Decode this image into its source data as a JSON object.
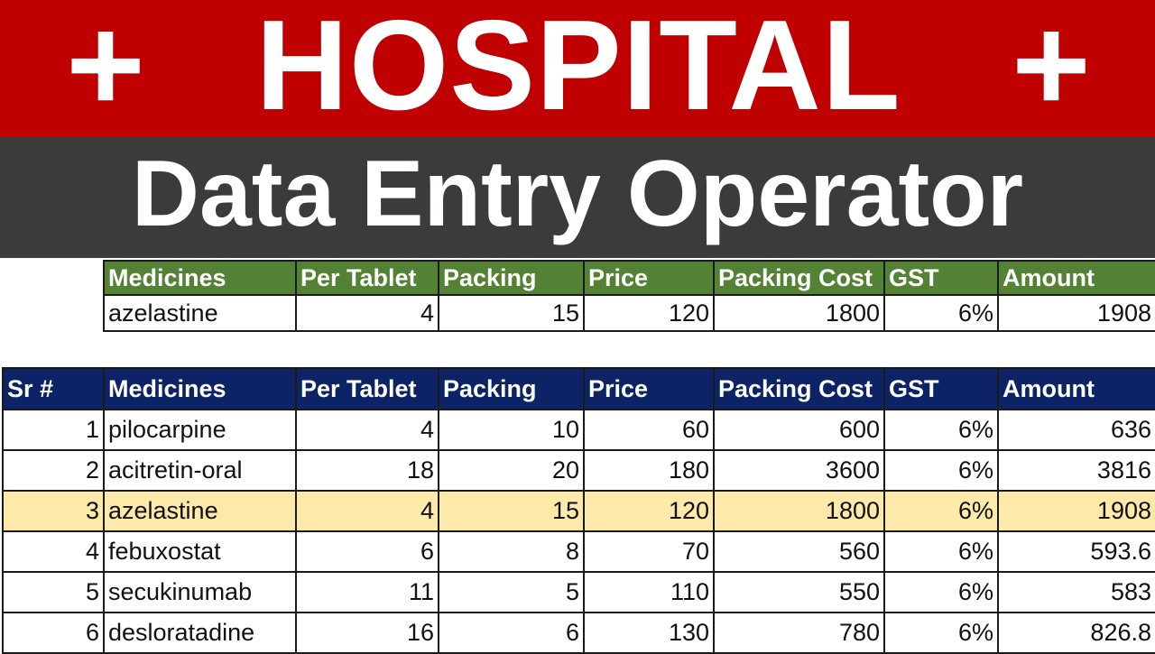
{
  "banner": {
    "plus_left": "+",
    "title": "HOSPITAL",
    "plus_right": "+",
    "subtitle": "Data Entry Operator",
    "red_color": "#c00000",
    "dark_color": "#3d3a3a"
  },
  "lookup": {
    "header_color": "#548235",
    "columns": [
      "Medicines",
      "Per Tablet",
      "Packing",
      "Price",
      "Packing Cost",
      "GST",
      "Amount"
    ],
    "row": [
      "azelastine",
      "4",
      "15",
      "120",
      "1800",
      "6%",
      "1908"
    ]
  },
  "records": {
    "header_color": "#0c2466",
    "highlight_color": "#fde9a9",
    "columns": [
      "Sr #",
      "Medicines",
      "Per Tablet",
      "Packing",
      "Price",
      "Packing Cost",
      "GST",
      "Amount"
    ],
    "rows": [
      [
        "1",
        "pilocarpine",
        "4",
        "10",
        "60",
        "600",
        "6%",
        "636"
      ],
      [
        "2",
        "acitretin-oral",
        "18",
        "20",
        "180",
        "3600",
        "6%",
        "3816"
      ],
      [
        "3",
        "azelastine",
        "4",
        "15",
        "120",
        "1800",
        "6%",
        "1908"
      ],
      [
        "4",
        "febuxostat",
        "6",
        "8",
        "70",
        "560",
        "6%",
        "593.6"
      ],
      [
        "5",
        "secukinumab",
        "11",
        "5",
        "110",
        "550",
        "6%",
        "583"
      ],
      [
        "6",
        "desloratadine",
        "16",
        "6",
        "130",
        "780",
        "6%",
        "826.8"
      ]
    ],
    "highlighted_row": 3
  }
}
